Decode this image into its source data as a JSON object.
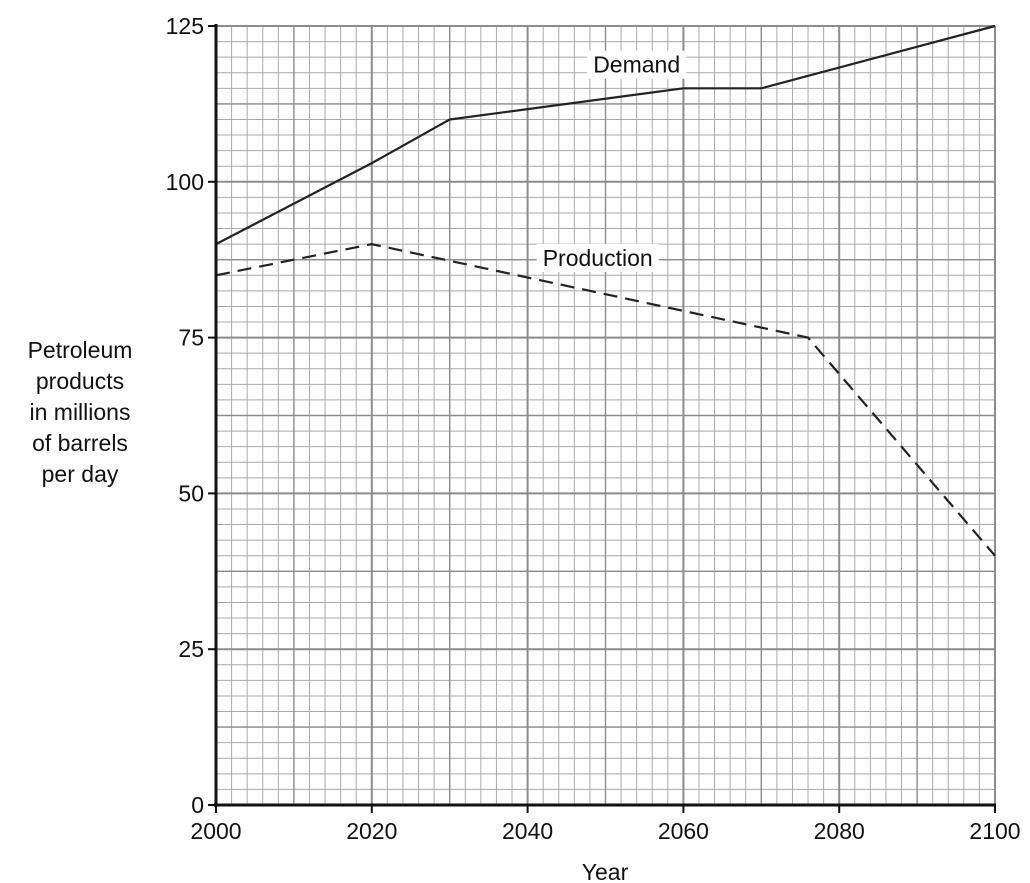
{
  "chart_data": {
    "type": "line",
    "title": "",
    "xlabel": "Year",
    "ylabel": [
      "Petroleum",
      "products",
      "in millions",
      "of barrels",
      "per day"
    ],
    "xlim": [
      2000,
      2100
    ],
    "ylim": [
      0,
      125
    ],
    "x_ticks": [
      "2000",
      "2020",
      "2040",
      "2060",
      "2080",
      "2100"
    ],
    "y_ticks": [
      "0",
      "25",
      "50",
      "75",
      "100",
      "125"
    ],
    "grid": true,
    "series": [
      {
        "name": "Demand",
        "style": "solid",
        "points": [
          [
            2000,
            90
          ],
          [
            2020,
            103
          ],
          [
            2030,
            110
          ],
          [
            2060,
            115
          ],
          [
            2070,
            115
          ],
          [
            2100,
            125
          ]
        ]
      },
      {
        "name": "Production",
        "style": "dashed",
        "points": [
          [
            2000,
            85
          ],
          [
            2020,
            90
          ],
          [
            2076,
            75
          ],
          [
            2100,
            40
          ]
        ]
      }
    ],
    "colors": {
      "line": "#222222",
      "grid_major": "#8c8c8c",
      "grid_minor": "#a9a9a9",
      "axis": "#111111"
    }
  }
}
